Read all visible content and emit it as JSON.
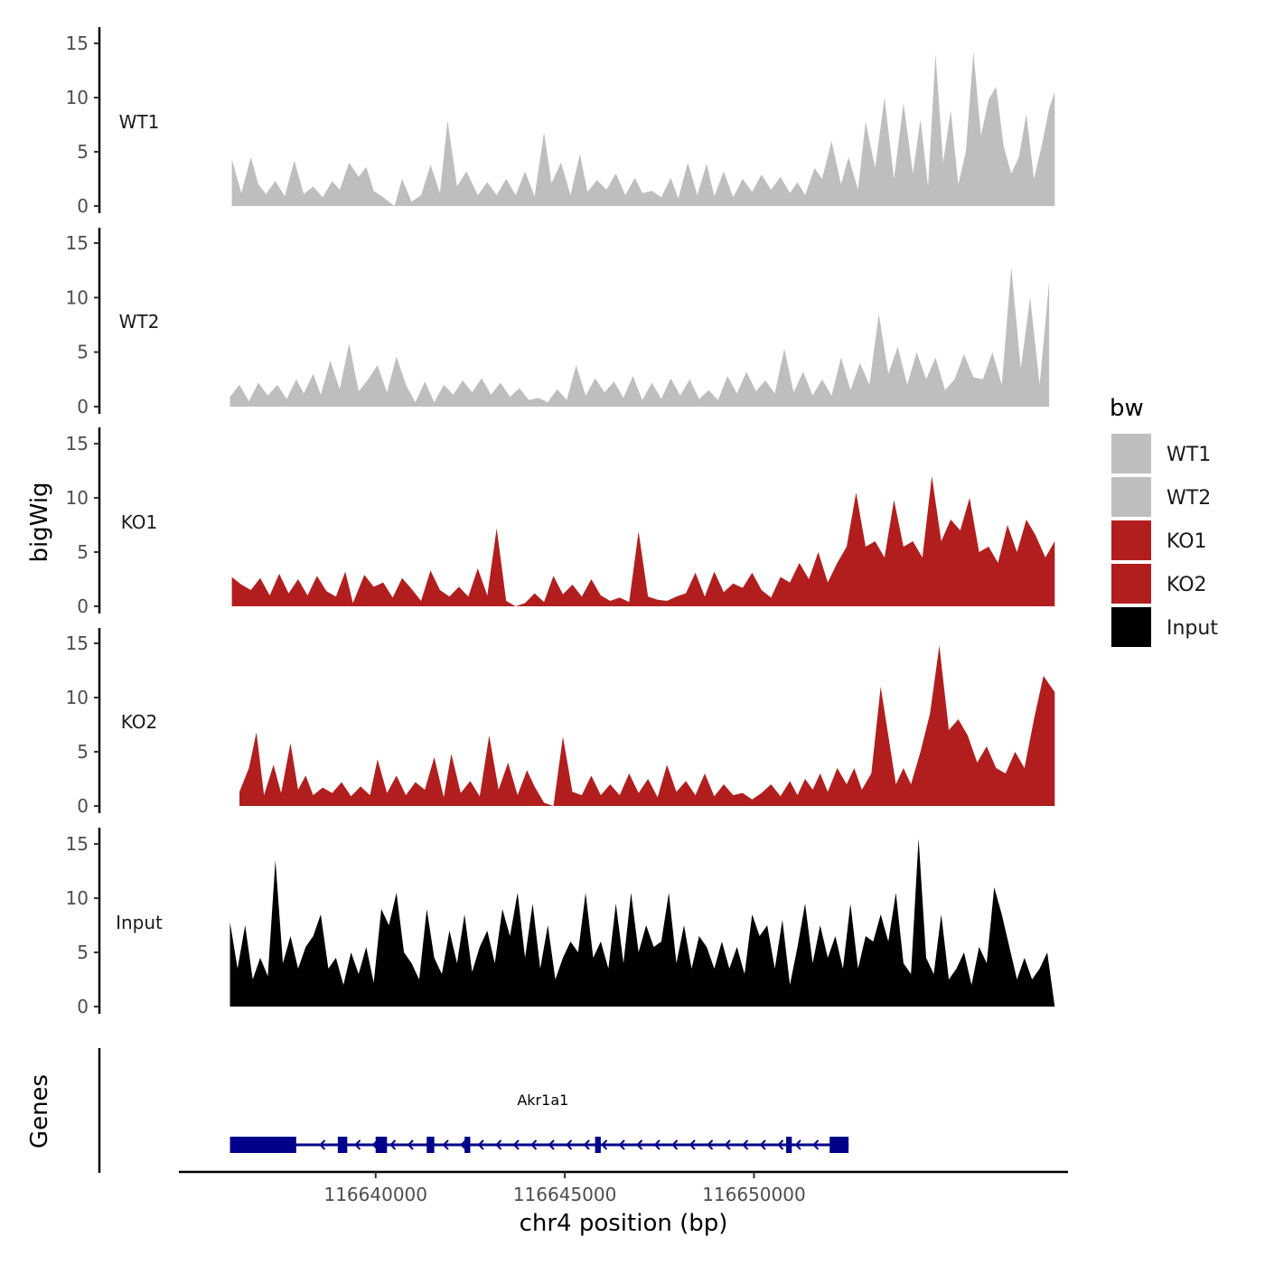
{
  "chart_data": {
    "type": "area",
    "ylabel": "bigWig",
    "xlabel": "chr4 position (bp)",
    "xlim": [
      116634800,
      116658300
    ],
    "ylim": [
      0,
      16
    ],
    "yticks": [
      0,
      5,
      10,
      15
    ],
    "xticks": [
      116640000,
      116645000,
      116650000
    ],
    "legend": {
      "title": "bw",
      "position": "right",
      "entries": [
        {
          "name": "WT1",
          "color": "#bebebe"
        },
        {
          "name": "WT2",
          "color": "#bebebe"
        },
        {
          "name": "KO1",
          "color": "#b21e1e"
        },
        {
          "name": "KO2",
          "color": "#b21e1e"
        },
        {
          "name": "Input",
          "color": "#000000"
        }
      ]
    },
    "series": [
      {
        "name": "WT1",
        "color": "#bebebe",
        "x": [
          116636200,
          116636450,
          116636700,
          116636900,
          116637100,
          116637350,
          116637600,
          116637850,
          116638100,
          116638350,
          116638600,
          116638850,
          116639050,
          116639300,
          116639550,
          116639750,
          116639950,
          116640200,
          116640500,
          116640700,
          116640950,
          116641200,
          116641450,
          116641700,
          116641900,
          116642150,
          116642400,
          116642700,
          116642950,
          116643200,
          116643450,
          116643700,
          116643950,
          116644200,
          116644450,
          116644650,
          116644900,
          116645150,
          116645400,
          116645600,
          116645850,
          116646100,
          116646350,
          116646600,
          116646850,
          116647050,
          116647300,
          116647550,
          116647800,
          116648000,
          116648250,
          116648500,
          116648750,
          116648950,
          116649200,
          116649450,
          116649700,
          116649950,
          116650200,
          116650450,
          116650700,
          116650950,
          116651150,
          116651350,
          116651600,
          116651800,
          116652050,
          116652300,
          116652500,
          116652750,
          116652950,
          116653200,
          116653450,
          116653700,
          116653950,
          116654200,
          116654400,
          116654600,
          116654800,
          116655000,
          116655200,
          116655400,
          116655600,
          116655800,
          116656000,
          116656200,
          116656400,
          116656600,
          116656800,
          116657000,
          116657200,
          116657400,
          116657600,
          116657800,
          116657950
        ],
        "values": [
          4.3,
          1.2,
          4.5,
          2.0,
          1.1,
          2.3,
          0.9,
          4.2,
          1.1,
          1.8,
          0.8,
          2.3,
          1.5,
          4.0,
          2.7,
          3.6,
          1.4,
          0.8,
          0,
          2.5,
          0.4,
          1.0,
          3.8,
          1.2,
          7.9,
          1.8,
          3.2,
          1.0,
          2.2,
          1.0,
          2.5,
          1.0,
          3.2,
          0.9,
          6.8,
          2.1,
          4.0,
          1.0,
          4.8,
          1.3,
          2.4,
          1.5,
          3.0,
          1.0,
          2.6,
          1.2,
          1.4,
          0.8,
          2.6,
          0.7,
          4.0,
          1.0,
          3.9,
          0.9,
          3.2,
          0.8,
          2.5,
          1.3,
          2.9,
          1.5,
          2.7,
          1.2,
          2.2,
          1.0,
          3.5,
          2.5,
          6.0,
          2.0,
          4.5,
          1.5,
          7.8,
          3.5,
          10.0,
          2.5,
          9.5,
          3.0,
          8.0,
          1.8,
          14.0,
          4.0,
          8.8,
          2.0,
          5.0,
          14.2,
          6.5,
          9.8,
          11.0,
          5.5,
          3.0,
          4.5,
          8.5,
          2.5,
          5.5,
          9.0,
          10.5
        ]
      },
      {
        "name": "WT2",
        "color": "#bebebe",
        "x": [
          116636150,
          116636400,
          116636650,
          116636900,
          116637150,
          116637400,
          116637650,
          116637900,
          116638100,
          116638350,
          116638550,
          116638800,
          116639050,
          116639300,
          116639550,
          116639800,
          116640050,
          116640300,
          116640550,
          116640800,
          116641050,
          116641300,
          116641550,
          116641800,
          116642050,
          116642300,
          116642550,
          116642800,
          116643050,
          116643300,
          116643550,
          116643800,
          116644050,
          116644300,
          116644550,
          116644800,
          116645050,
          116645300,
          116645550,
          116645800,
          116646050,
          116646300,
          116646550,
          116646800,
          116647050,
          116647300,
          116647550,
          116647800,
          116648050,
          116648300,
          116648550,
          116648800,
          116649050,
          116649300,
          116649550,
          116649800,
          116650050,
          116650300,
          116650550,
          116650800,
          116651050,
          116651300,
          116651550,
          116651800,
          116652050,
          116652300,
          116652550,
          116652800,
          116653050,
          116653300,
          116653550,
          116653800,
          116654050,
          116654300,
          116654550,
          116654800,
          116655050,
          116655300,
          116655550,
          116655800,
          116656050,
          116656300,
          116656550,
          116656800,
          116657050,
          116657300,
          116657550,
          116657800
        ],
        "values": [
          0.9,
          2.0,
          0.5,
          2.2,
          1.0,
          2.0,
          0.7,
          2.5,
          1.2,
          3.0,
          1.1,
          4.2,
          1.6,
          5.8,
          1.4,
          2.5,
          3.8,
          1.3,
          4.6,
          2.0,
          0.4,
          2.3,
          0.4,
          2.0,
          1.1,
          2.4,
          1.3,
          2.6,
          1.1,
          2.2,
          0.9,
          1.7,
          0.6,
          0.8,
          0.4,
          1.6,
          0.6,
          3.8,
          1.0,
          2.6,
          1.3,
          2.3,
          0.8,
          2.8,
          0.6,
          2.2,
          0.7,
          2.6,
          1.0,
          2.5,
          0.7,
          1.5,
          0.6,
          2.8,
          1.2,
          3.2,
          1.4,
          2.4,
          1.2,
          5.3,
          1.3,
          3.2,
          1.0,
          2.5,
          1.0,
          4.5,
          1.5,
          4.0,
          2.0,
          8.5,
          3.0,
          5.5,
          2.0,
          5.0,
          2.5,
          4.5,
          1.5,
          2.5,
          4.8,
          2.7,
          2.5,
          5.0,
          2.0,
          12.8,
          3.5,
          10.0,
          2.0,
          11.5
        ]
      },
      {
        "name": "KO1",
        "color": "#b21e1e",
        "x": [
          116636200,
          116636450,
          116636700,
          116636950,
          116637200,
          116637450,
          116637700,
          116637950,
          116638200,
          116638450,
          116638700,
          116638950,
          116639200,
          116639400,
          116639700,
          116639950,
          116640200,
          116640450,
          116640700,
          116640950,
          116641200,
          116641450,
          116641700,
          116641950,
          116642200,
          116642450,
          116642700,
          116642950,
          116643200,
          116643450,
          116643700,
          116643950,
          116644200,
          116644450,
          116644700,
          116644950,
          116645200,
          116645450,
          116645700,
          116645950,
          116646200,
          116646450,
          116646700,
          116646950,
          116647200,
          116647450,
          116647700,
          116647950,
          116648200,
          116648450,
          116648700,
          116648950,
          116649200,
          116649450,
          116649700,
          116649950,
          116650200,
          116650450,
          116650700,
          116650950,
          116651200,
          116651450,
          116651700,
          116651950,
          116652200,
          116652450,
          116652700,
          116652950,
          116653200,
          116653450,
          116653700,
          116653950,
          116654200,
          116654450,
          116654700,
          116654950,
          116655200,
          116655450,
          116655700,
          116655950,
          116656200,
          116656450,
          116656700,
          116656950,
          116657200,
          116657450,
          116657700,
          116657950
        ],
        "values": [
          2.7,
          2.0,
          1.5,
          2.6,
          1.0,
          3.0,
          1.2,
          2.5,
          1.0,
          2.8,
          1.4,
          0.9,
          3.2,
          0.3,
          2.9,
          1.8,
          2.2,
          0.8,
          2.6,
          1.6,
          0.5,
          3.3,
          1.5,
          0.9,
          1.8,
          0.9,
          3.5,
          1.0,
          7.2,
          0.5,
          0,
          0.3,
          1.2,
          0.4,
          2.8,
          1.1,
          2.0,
          0.9,
          2.5,
          1.0,
          0.5,
          0.8,
          0.4,
          6.9,
          0.9,
          0.6,
          0.5,
          0.9,
          1.2,
          3.1,
          0.9,
          3.2,
          1.3,
          2.1,
          1.7,
          3.1,
          1.5,
          0.8,
          2.7,
          2.2,
          4.0,
          2.5,
          5.0,
          2.2,
          4.0,
          5.5,
          10.5,
          5.5,
          6.0,
          4.5,
          9.8,
          5.5,
          6.0,
          4.5,
          12.0,
          6.0,
          8.0,
          7.0,
          10.0,
          5.0,
          5.5,
          4.0,
          7.5,
          5.0,
          8.0,
          6.5,
          4.5,
          6.0
        ]
      },
      {
        "name": "KO2",
        "color": "#b21e1e",
        "x": [
          116636400,
          116636650,
          116636850,
          116637050,
          116637300,
          116637500,
          116637750,
          116637950,
          116638150,
          116638350,
          116638600,
          116638850,
          116639100,
          116639350,
          116639600,
          116639850,
          116640050,
          116640300,
          116640550,
          116640800,
          116641050,
          116641300,
          116641550,
          116641800,
          116642000,
          116642250,
          116642500,
          116642750,
          116643000,
          116643250,
          116643500,
          116643750,
          116644000,
          116644200,
          116644450,
          116644700,
          116644950,
          116645200,
          116645450,
          116645700,
          116645950,
          116646200,
          116646450,
          116646700,
          116646950,
          116647200,
          116647450,
          116647700,
          116647950,
          116648200,
          116648450,
          116648700,
          116648950,
          116649200,
          116649450,
          116649700,
          116649950,
          116650200,
          116650450,
          116650700,
          116650950,
          116651150,
          116651350,
          116651550,
          116651750,
          116651950,
          116652200,
          116652450,
          116652650,
          116652850,
          116653100,
          116653350,
          116653550,
          116653750,
          116653950,
          116654150,
          116654400,
          116654650,
          116654900,
          116655150,
          116655400,
          116655650,
          116655900,
          116656150,
          116656400,
          116656650,
          116656900,
          116657150,
          116657400,
          116657650,
          116657950
        ],
        "values": [
          1.3,
          3.5,
          6.8,
          1.0,
          3.8,
          1.2,
          5.8,
          1.5,
          2.8,
          1.0,
          1.7,
          1.2,
          2.2,
          0.9,
          1.8,
          1.0,
          4.3,
          1.2,
          2.8,
          1.0,
          2.2,
          1.5,
          4.5,
          0.8,
          4.8,
          1.2,
          2.3,
          0.9,
          6.5,
          1.5,
          4.0,
          1.0,
          3.3,
          1.8,
          0.3,
          0,
          6.4,
          1.3,
          1.0,
          2.8,
          1.0,
          2.0,
          1.0,
          3.0,
          1.2,
          2.5,
          0.8,
          3.8,
          1.3,
          2.3,
          1.0,
          3.0,
          0.9,
          2.0,
          1.0,
          1.2,
          0.6,
          1.2,
          2.0,
          0.9,
          2.3,
          1.0,
          2.5,
          1.5,
          3.0,
          1.3,
          3.5,
          2.0,
          3.5,
          1.5,
          3.0,
          11.0,
          6.5,
          2.0,
          3.5,
          2.0,
          5.0,
          8.5,
          14.8,
          7.0,
          8.0,
          6.5,
          4.0,
          5.5,
          3.5,
          3.0,
          5.0,
          3.5,
          8.0,
          12.0,
          10.5
        ]
      },
      {
        "name": "Input",
        "color": "#000000",
        "x": [
          116636150,
          116636350,
          116636550,
          116636750,
          116636950,
          116637150,
          116637350,
          116637550,
          116637750,
          116637950,
          116638150,
          116638350,
          116638550,
          116638750,
          116638950,
          116639150,
          116639350,
          116639550,
          116639750,
          116639950,
          116640150,
          116640350,
          116640550,
          116640750,
          116640950,
          116641150,
          116641350,
          116641550,
          116641750,
          116641950,
          116642150,
          116642350,
          116642550,
          116642750,
          116642950,
          116643150,
          116643350,
          116643550,
          116643750,
          116643950,
          116644150,
          116644350,
          116644550,
          116644750,
          116644950,
          116645150,
          116645350,
          116645550,
          116645750,
          116645950,
          116646150,
          116646350,
          116646550,
          116646750,
          116646950,
          116647150,
          116647350,
          116647550,
          116647750,
          116647950,
          116648150,
          116648350,
          116648550,
          116648750,
          116648950,
          116649150,
          116649350,
          116649550,
          116649750,
          116649950,
          116650150,
          116650350,
          116650550,
          116650750,
          116650950,
          116651150,
          116651350,
          116651550,
          116651750,
          116651950,
          116652150,
          116652350,
          116652550,
          116652750,
          116652950,
          116653150,
          116653350,
          116653550,
          116653750,
          116653950,
          116654150,
          116654350,
          116654550,
          116654750,
          116654950,
          116655150,
          116655350,
          116655550,
          116655750,
          116655950,
          116656150,
          116656350,
          116656550,
          116656750,
          116656950,
          116657150,
          116657350,
          116657550,
          116657750,
          116657950
        ],
        "values": [
          7.8,
          3.5,
          7.5,
          2.5,
          4.5,
          2.8,
          13.5,
          4.0,
          6.5,
          3.5,
          5.5,
          6.5,
          8.5,
          3.5,
          4.5,
          2.0,
          5.0,
          3.0,
          5.5,
          2.2,
          9.0,
          7.5,
          10.5,
          5.0,
          4.0,
          2.5,
          9.0,
          4.5,
          3.0,
          7.0,
          4.0,
          8.5,
          3.2,
          5.5,
          7.0,
          4.0,
          9.0,
          6.5,
          10.5,
          4.5,
          9.5,
          3.5,
          7.5,
          2.5,
          4.5,
          6.0,
          5.0,
          10.5,
          4.5,
          6.0,
          3.5,
          9.5,
          4.0,
          10.5,
          5.0,
          7.5,
          5.5,
          6.0,
          10.5,
          4.0,
          7.5,
          3.5,
          6.5,
          5.5,
          3.5,
          6.0,
          3.5,
          5.5,
          3.0,
          8.5,
          6.5,
          7.5,
          3.5,
          8.0,
          2.0,
          5.5,
          9.5,
          4.0,
          7.5,
          4.5,
          6.5,
          3.5,
          9.5,
          3.5,
          6.5,
          6.0,
          8.5,
          6.0,
          10.5,
          4.0,
          3.0,
          15.5,
          4.5,
          3.0,
          8.5,
          2.5,
          3.5,
          5.0,
          2.0,
          5.5,
          4.0,
          11.0,
          8.5,
          5.5,
          2.5,
          4.5,
          2.5,
          3.5,
          5.0,
          0
        ]
      }
    ],
    "gene_track": {
      "label": "Genes",
      "gene_name": "Akr1a1",
      "color": "#00008b",
      "start": 116636150,
      "end": 116652500,
      "strand": "-",
      "exons": [
        [
          116636150,
          116637900
        ],
        [
          116639000,
          116639250
        ],
        [
          116640000,
          116640300
        ],
        [
          116641350,
          116641550
        ],
        [
          116642350,
          116642500
        ],
        [
          116645800,
          116645950
        ],
        [
          116650850,
          116651000
        ],
        [
          116652000,
          116652500
        ]
      ]
    }
  }
}
